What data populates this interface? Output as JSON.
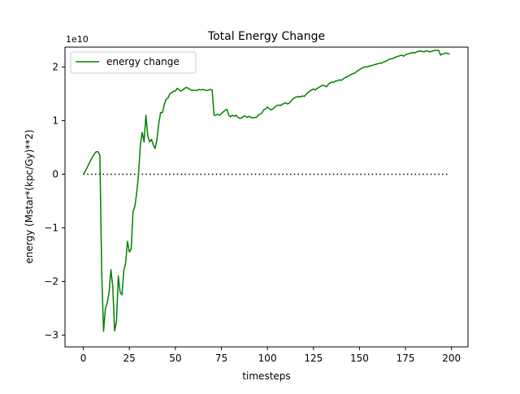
{
  "chart_data": {
    "type": "line",
    "title": "Total Energy Change",
    "xlabel": "timesteps",
    "ylabel": "energy (Mstar*(kpc/Gy)**2)",
    "y_offset_label": "1e10",
    "xlim": [
      -9.95,
      208.95
    ],
    "ylim": [
      -3.22,
      2.37
    ],
    "x_ticks": [
      0,
      25,
      50,
      75,
      100,
      125,
      150,
      175,
      200
    ],
    "x_tick_labels": [
      "0",
      "25",
      "50",
      "75",
      "100",
      "125",
      "150",
      "175",
      "200"
    ],
    "y_ticks": [
      -3,
      -2,
      -1,
      0,
      1,
      2
    ],
    "y_tick_labels": [
      "−3",
      "−2",
      "−1",
      "0",
      "1",
      "2"
    ],
    "grid": false,
    "legend_position": "upper left",
    "reference_line": {
      "y": 0,
      "x_start": 0,
      "x_end": 199,
      "style": "dotted",
      "color": "#000000"
    },
    "series": [
      {
        "name": "energy change",
        "color": "#008000",
        "x": [
          0,
          1,
          2,
          3,
          4,
          5,
          6,
          7,
          8,
          9,
          10,
          11,
          12,
          13,
          14,
          15,
          16,
          17,
          18,
          19,
          20,
          21,
          22,
          23,
          24,
          25,
          26,
          27,
          28,
          29,
          30,
          31,
          32,
          33,
          34,
          35,
          36,
          37,
          38,
          39,
          40,
          41,
          42,
          43,
          44,
          45,
          46,
          47,
          48,
          49,
          50,
          51,
          52,
          53,
          54,
          55,
          56,
          57,
          58,
          59,
          60,
          61,
          62,
          63,
          64,
          65,
          66,
          67,
          68,
          69,
          70,
          71,
          72,
          73,
          74,
          75,
          76,
          77,
          78,
          79,
          80,
          81,
          82,
          83,
          84,
          85,
          86,
          87,
          88,
          89,
          90,
          91,
          92,
          93,
          94,
          95,
          96,
          97,
          98,
          99,
          100,
          101,
          102,
          103,
          104,
          105,
          106,
          107,
          108,
          109,
          110,
          111,
          112,
          113,
          114,
          115,
          116,
          117,
          118,
          119,
          120,
          121,
          122,
          123,
          124,
          125,
          126,
          127,
          128,
          129,
          130,
          131,
          132,
          133,
          134,
          135,
          136,
          137,
          138,
          139,
          140,
          141,
          142,
          143,
          144,
          145,
          146,
          147,
          148,
          149,
          150,
          151,
          152,
          153,
          154,
          155,
          156,
          157,
          158,
          159,
          160,
          161,
          162,
          163,
          164,
          165,
          166,
          167,
          168,
          169,
          170,
          171,
          172,
          173,
          174,
          175,
          176,
          177,
          178,
          179,
          180,
          181,
          182,
          183,
          184,
          185,
          186,
          187,
          188,
          189,
          190,
          191,
          192,
          193,
          194,
          195,
          196,
          197,
          198,
          199
        ],
        "y": [
          0.0,
          0.05,
          0.12,
          0.19,
          0.26,
          0.32,
          0.38,
          0.42,
          0.42,
          0.35,
          -1.85,
          -2.93,
          -2.5,
          -2.4,
          -2.2,
          -1.78,
          -2.1,
          -2.92,
          -2.75,
          -1.9,
          -2.2,
          -2.25,
          -1.8,
          -1.65,
          -1.25,
          -1.45,
          -1.4,
          -0.7,
          -0.6,
          -0.35,
          0.0,
          0.55,
          0.78,
          0.6,
          1.1,
          0.72,
          0.6,
          0.65,
          0.55,
          0.48,
          0.65,
          0.95,
          1.15,
          1.15,
          1.3,
          1.4,
          1.42,
          1.5,
          1.52,
          1.55,
          1.55,
          1.6,
          1.58,
          1.55,
          1.57,
          1.6,
          1.62,
          1.6,
          1.58,
          1.56,
          1.57,
          1.56,
          1.57,
          1.58,
          1.57,
          1.58,
          1.57,
          1.56,
          1.57,
          1.58,
          1.57,
          1.1,
          1.1,
          1.12,
          1.1,
          1.13,
          1.16,
          1.19,
          1.21,
          1.1,
          1.07,
          1.1,
          1.08,
          1.1,
          1.06,
          1.04,
          1.05,
          1.08,
          1.08,
          1.06,
          1.08,
          1.06,
          1.05,
          1.06,
          1.06,
          1.1,
          1.12,
          1.14,
          1.2,
          1.22,
          1.25,
          1.22,
          1.2,
          1.22,
          1.25,
          1.28,
          1.29,
          1.28,
          1.3,
          1.32,
          1.33,
          1.31,
          1.33,
          1.37,
          1.41,
          1.43,
          1.44,
          1.45,
          1.44,
          1.46,
          1.45,
          1.49,
          1.52,
          1.55,
          1.57,
          1.59,
          1.57,
          1.6,
          1.62,
          1.64,
          1.66,
          1.65,
          1.63,
          1.67,
          1.7,
          1.72,
          1.71,
          1.74,
          1.74,
          1.76,
          1.75,
          1.77,
          1.8,
          1.81,
          1.83,
          1.85,
          1.87,
          1.88,
          1.9,
          1.93,
          1.95,
          1.97,
          1.99,
          2.0,
          2.0,
          2.01,
          2.02,
          2.03,
          2.04,
          2.05,
          2.06,
          2.07,
          2.07,
          2.09,
          2.1,
          2.12,
          2.14,
          2.15,
          2.16,
          2.17,
          2.19,
          2.2,
          2.21,
          2.22,
          2.2,
          2.23,
          2.24,
          2.25,
          2.26,
          2.27,
          2.26,
          2.28,
          2.29,
          2.3,
          2.29,
          2.28,
          2.3,
          2.3,
          2.28,
          2.29,
          2.3,
          2.31,
          2.31,
          2.31,
          2.22,
          2.24,
          2.25,
          2.26,
          2.25,
          2.24
        ]
      }
    ]
  }
}
